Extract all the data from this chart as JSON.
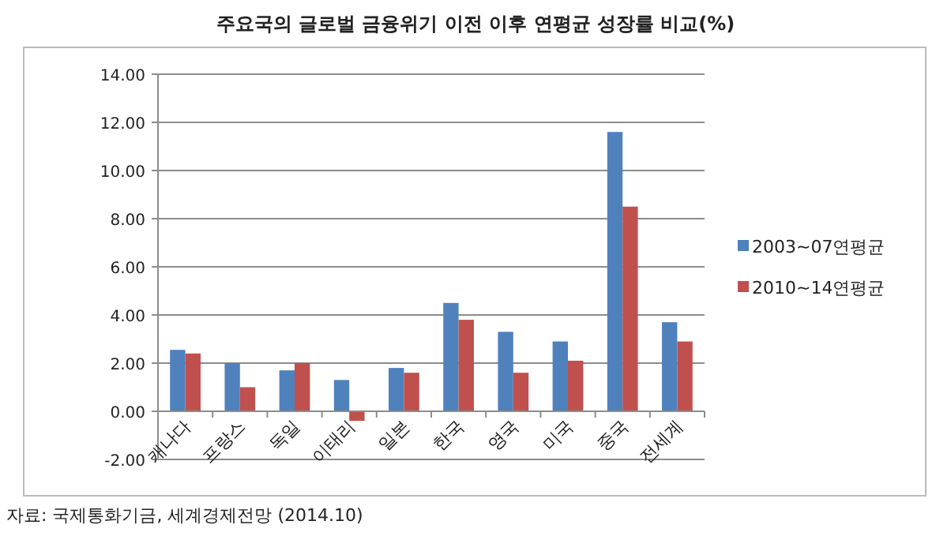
{
  "chart_data": {
    "type": "bar",
    "title": "주요국의 글로벌 금융위기 이전 이후 연평균 성장률 비교(%)",
    "categories": [
      "캐나다",
      "프랑스",
      "독일",
      "이태리",
      "일본",
      "한국",
      "영국",
      "미국",
      "중국",
      "전세계"
    ],
    "series": [
      {
        "name": "2003~07연평균",
        "color": "#4f81bd",
        "values": [
          2.55,
          2.0,
          1.7,
          1.3,
          1.8,
          4.5,
          3.3,
          2.9,
          11.6,
          3.7
        ]
      },
      {
        "name": "2010~14연평균",
        "color": "#c0504d",
        "values": [
          2.4,
          1.0,
          2.0,
          -0.4,
          1.6,
          3.8,
          1.6,
          2.1,
          8.5,
          2.9
        ]
      }
    ],
    "ylim": [
      -2,
      14
    ],
    "yticks": [
      {
        "value": -2,
        "label": "-2.00"
      },
      {
        "value": 0,
        "label": "0.00"
      },
      {
        "value": 2,
        "label": "2.00"
      },
      {
        "value": 4,
        "label": "4.00"
      },
      {
        "value": 6,
        "label": "6.00"
      },
      {
        "value": 8,
        "label": "8.00"
      },
      {
        "value": 10,
        "label": "10.00"
      },
      {
        "value": 12,
        "label": "12.00"
      },
      {
        "value": 14,
        "label": "14.00"
      }
    ],
    "grid": "y",
    "legend": "right",
    "annotations": [
      "자료: 국제통화기금, 세계경제전망 (2014.10)"
    ]
  }
}
